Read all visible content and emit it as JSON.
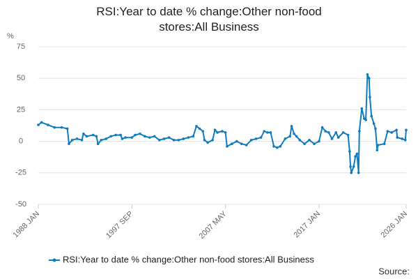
{
  "chart_data": {
    "type": "line",
    "title": "RSI:Year to date % change:Other non-food stores:All Business",
    "y_label": "%",
    "source": "Source:",
    "x": [
      "1988 JAN",
      "1988 MAY",
      "1989 JAN",
      "1989 SEP",
      "1990 JUN",
      "1991 JAN",
      "1991 MAR",
      "1991 JUL",
      "1992 JAN",
      "1992 JUL",
      "1992 SEP",
      "1993 JAN",
      "1993 SEP",
      "1994 JAN",
      "1994 MAR",
      "1994 JUL",
      "1995 JAN",
      "1995 JUL",
      "1996 JAN",
      "1996 JUL",
      "1996 SEP",
      "1997 JAN",
      "1997 SEP",
      "1998 JAN",
      "1998 JUL",
      "1999 JAN",
      "1999 JUL",
      "2000 JAN",
      "2000 JUL",
      "2001 JAN",
      "2001 JUL",
      "2002 JAN",
      "2002 JUL",
      "2003 JAN",
      "2003 JUL",
      "2004 JAN",
      "2004 MAY",
      "2004 SEP",
      "2005 JAN",
      "2005 MAR",
      "2005 JUL",
      "2006 JAN",
      "2006 APR",
      "2006 JUL",
      "2007 JAN",
      "2007 MAY",
      "2007 JUL",
      "2008 JAN",
      "2008 JUL",
      "2009 JAN",
      "2009 JUL",
      "2010 JAN",
      "2010 JUL",
      "2011 JAN",
      "2011 MAY",
      "2011 SEP",
      "2012 JAN",
      "2012 MAY",
      "2012 SEP",
      "2013 JAN",
      "2013 JUL",
      "2014 JAN",
      "2014 MAR",
      "2014 JUN",
      "2014 SEP",
      "2015 JAN",
      "2015 JUL",
      "2016 JAN",
      "2016 JUL",
      "2017 JAN",
      "2017 MAY",
      "2017 SEP",
      "2018 JAN",
      "2018 MAY",
      "2018 OCT",
      "2019 JAN",
      "2019 JUL",
      "2020 JAN",
      "2020 MAR",
      "2020 APR",
      "2020 MAY",
      "2020 AUG",
      "2020 OCT",
      "2020 DEC",
      "2021 FEB",
      "2021 MAR",
      "2021 JUN",
      "2021 SEP",
      "2021 NOV",
      "2022 JAN",
      "2022 MAR",
      "2022 APR",
      "2022 JUN",
      "2022 SEP",
      "2022 NOV",
      "2023 JAN",
      "2023 FEB",
      "2023 OCT",
      "2024 FEB",
      "2024 JUL",
      "2025 JAN",
      "2025 FEB",
      "2025 AUG",
      "2025 DEC",
      "2026 JAN"
    ],
    "series": [
      {
        "name": "RSI:Year to date % change:Other non-food stores:All Business",
        "color": "#0f7cbf",
        "values": [
          13,
          15,
          13,
          11,
          11,
          10,
          -2,
          1,
          2,
          1,
          6,
          4,
          5,
          4,
          -2,
          1,
          2,
          4,
          5,
          5,
          2,
          3,
          3,
          5,
          6,
          4,
          3,
          4,
          1,
          2,
          3,
          1,
          1,
          2,
          3,
          4,
          12,
          10,
          8,
          1,
          -1,
          1,
          9,
          7,
          8,
          7,
          -4,
          -2,
          0,
          -2,
          -3,
          1,
          2,
          3,
          8,
          7,
          7,
          -4,
          -5,
          -4,
          2,
          4,
          12,
          6,
          4,
          1,
          -2,
          1,
          -2,
          0,
          11,
          8,
          7,
          2,
          7,
          3,
          7,
          5,
          -8,
          -20,
          -25,
          -20,
          -12,
          -10,
          -25,
          8,
          26,
          18,
          17,
          53,
          50,
          35,
          20,
          14,
          10,
          -7,
          -3,
          -2,
          8,
          7,
          9,
          3,
          2,
          1,
          9
        ]
      }
    ],
    "xlim": [
      "1988 JAN",
      "2026 JAN"
    ],
    "xticks": [
      "1988 JAN",
      "1997 SEP",
      "2007 MAY",
      "2017 JAN",
      "2026 JAN"
    ],
    "ylim": [
      -50,
      75
    ],
    "yticks": [
      75,
      50,
      25,
      0,
      -25,
      -50
    ],
    "grid": true
  }
}
